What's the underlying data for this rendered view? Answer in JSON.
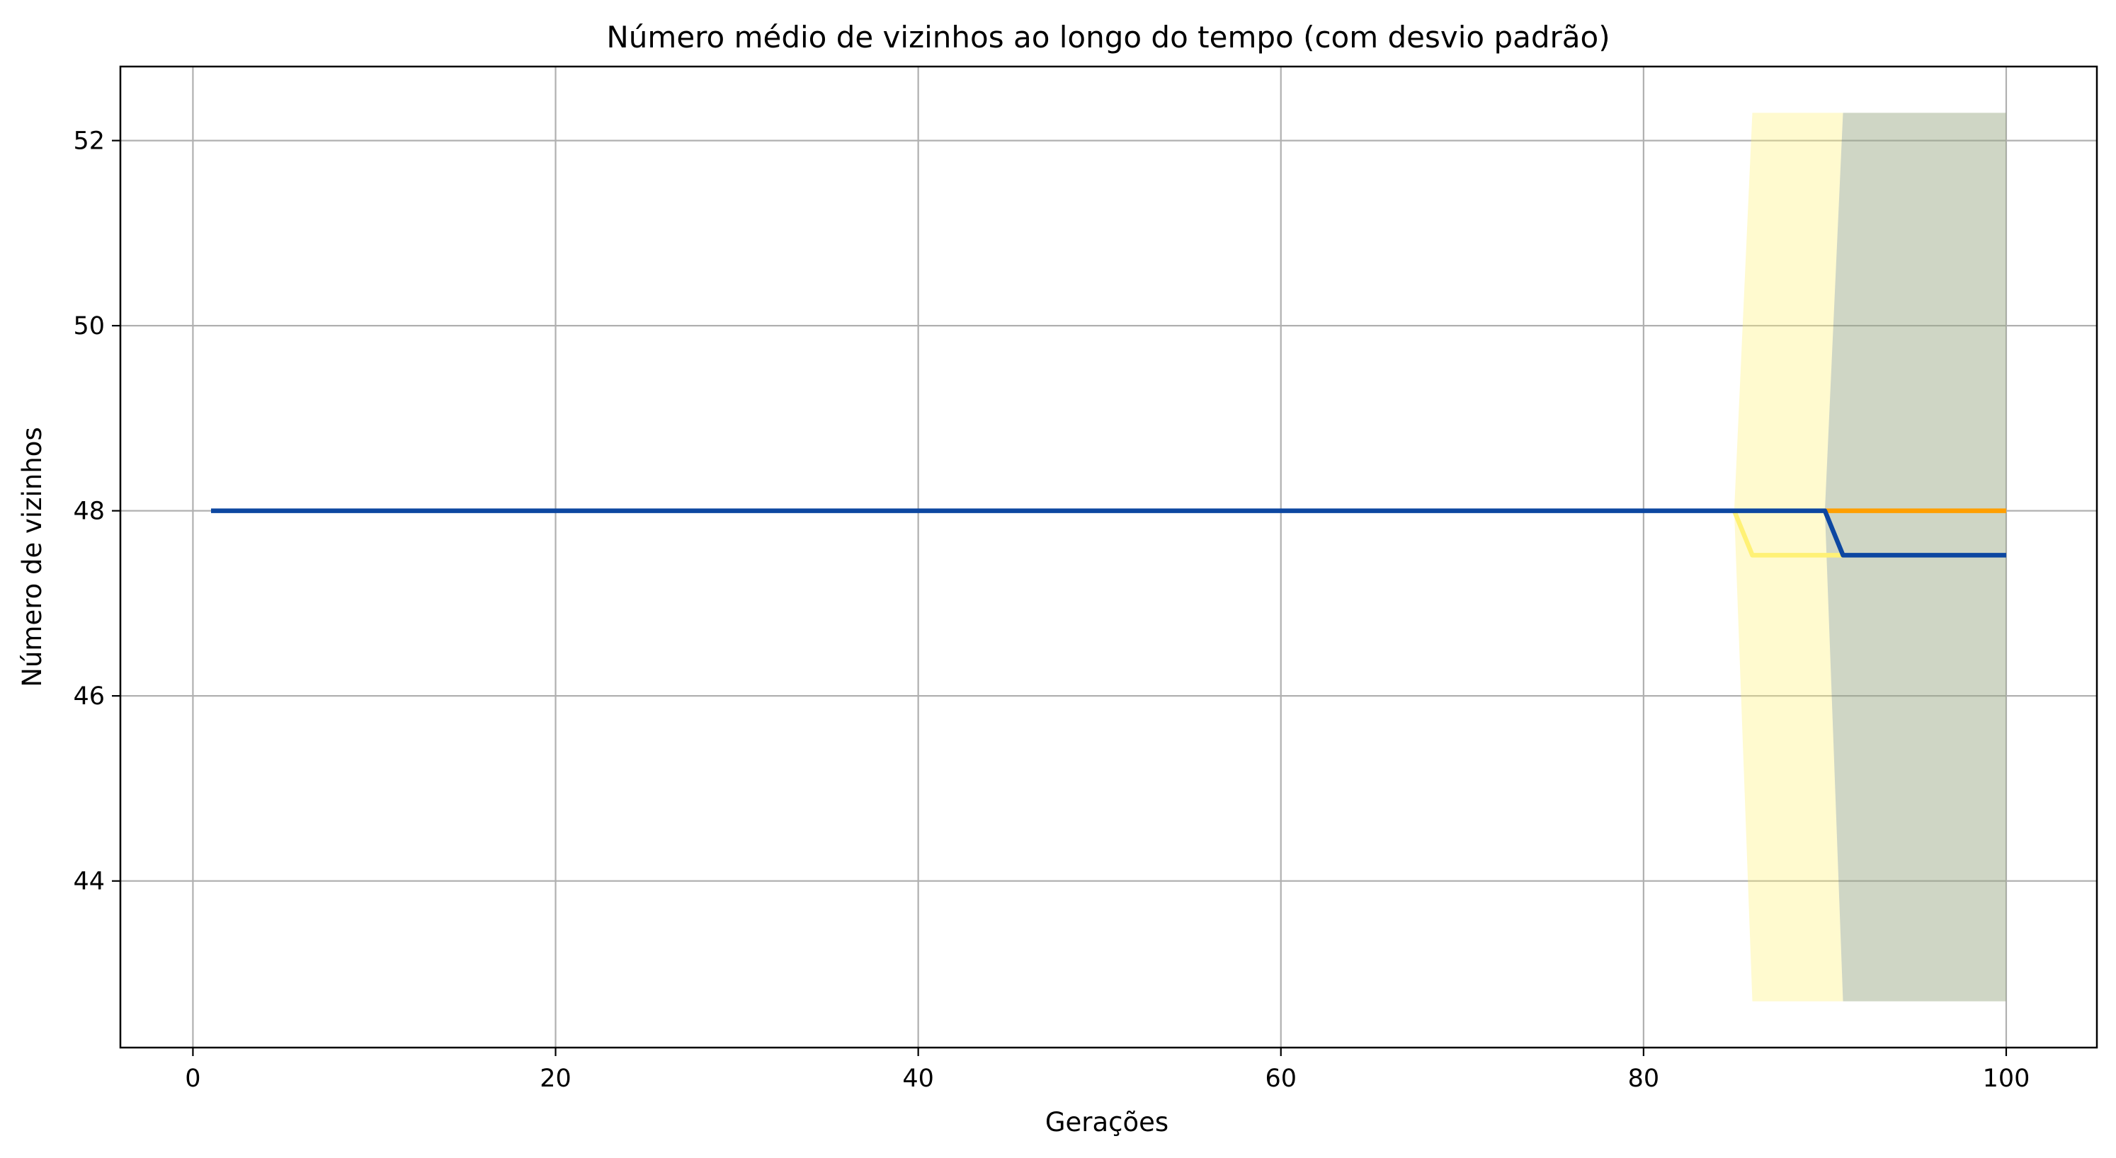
{
  "chart_data": {
    "type": "line",
    "title": "Número médio de vizinhos ao longo do tempo (com desvio padrão)",
    "xlabel": "Gerações",
    "ylabel": "Número de vizinhos",
    "xlim": [
      -4,
      105
    ],
    "ylim": [
      42.2,
      52.8
    ],
    "xticks": [
      0,
      20,
      40,
      60,
      80,
      100
    ],
    "yticks": [
      44,
      46,
      48,
      50,
      52
    ],
    "grid": true,
    "series": [
      {
        "color": "#fff176",
        "band": {
          "x": [
            85,
            86,
            91,
            100
          ],
          "lower": [
            48.0,
            42.7,
            42.7,
            42.7
          ],
          "upper": [
            48.0,
            52.3,
            52.3,
            52.3
          ],
          "opacity": 0.35
        },
        "x": [
          85,
          86,
          91
        ],
        "y": [
          48.0,
          47.52,
          47.52
        ]
      },
      {
        "color": "#ff9f00",
        "x": [
          90,
          100
        ],
        "y": [
          48.0,
          48.0
        ]
      },
      {
        "color": "#0d47a1",
        "band": {
          "x": [
            90,
            91,
            100
          ],
          "lower": [
            48.0,
            42.7,
            42.7
          ],
          "upper": [
            48.0,
            52.3,
            52.3
          ],
          "opacity": 0.2
        },
        "x": [
          1,
          90,
          91,
          100
        ],
        "y": [
          48.0,
          48.0,
          47.52,
          47.52
        ]
      }
    ]
  }
}
